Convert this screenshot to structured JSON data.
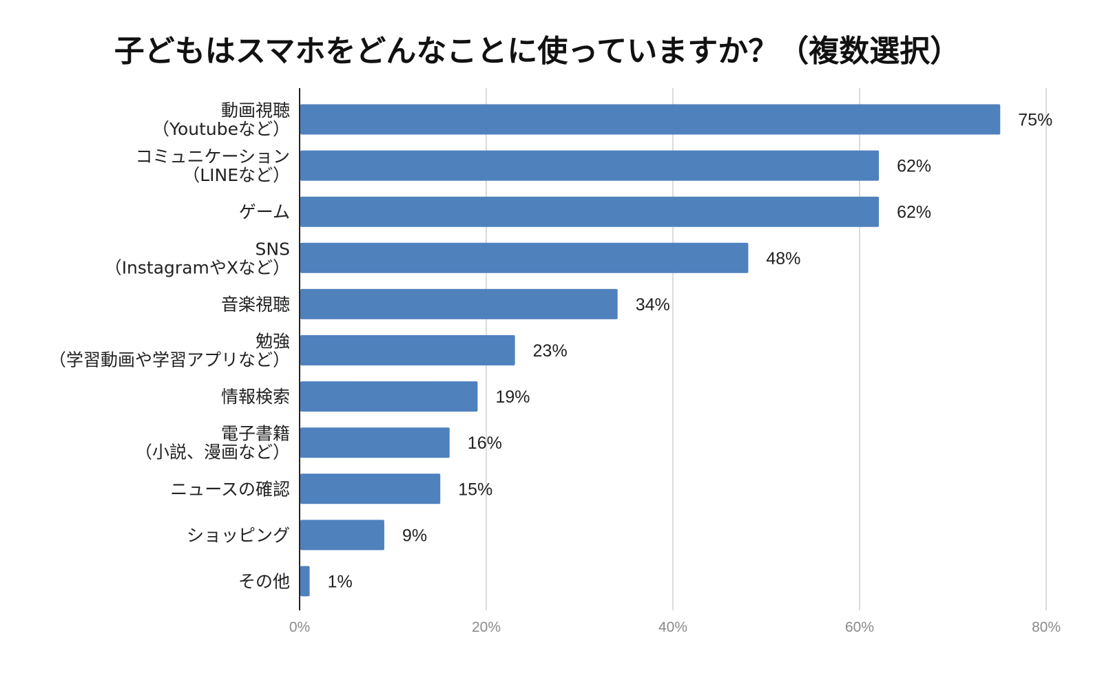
{
  "chart_data": {
    "type": "bar",
    "orientation": "horizontal",
    "title": "子どもはスマホをどんなことに使っていますか？（複数選択）",
    "categories": [
      [
        "動画視聴",
        "（Youtubeなど）"
      ],
      [
        "コミュニケーション",
        "（LINEなど）"
      ],
      [
        "ゲーム"
      ],
      [
        "SNS",
        "（InstagramやXなど）"
      ],
      [
        "音楽視聴"
      ],
      [
        "勉強",
        "（学習動画や学習アプリなど）"
      ],
      [
        "情報検索"
      ],
      [
        "電子書籍",
        "（小説、漫画など）"
      ],
      [
        "ニュースの確認"
      ],
      [
        "ショッピング"
      ],
      [
        "その他"
      ]
    ],
    "values": [
      75,
      62,
      62,
      48,
      34,
      23,
      19,
      16,
      15,
      9,
      1
    ],
    "value_labels": [
      "75%",
      "62%",
      "62%",
      "48%",
      "34%",
      "23%",
      "19%",
      "16%",
      "15%",
      "9%",
      "1%"
    ],
    "xlim": [
      0,
      80
    ],
    "x_ticks": [
      0,
      20,
      40,
      60,
      80
    ],
    "x_tick_labels": [
      "0%",
      "20%",
      "40%",
      "60%",
      "80%"
    ],
    "xlabel": "",
    "ylabel": "",
    "grid": true,
    "legend": "none",
    "bar_color": "#4f81bd"
  }
}
